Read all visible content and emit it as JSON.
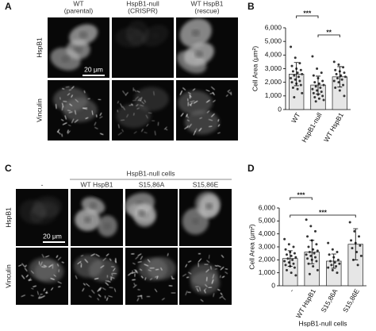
{
  "panels": {
    "A": {
      "label": "A",
      "columns": [
        [
          "WT",
          "(parental)"
        ],
        [
          "HspB1-null",
          "(CRISPR)"
        ],
        [
          "WT HspB1",
          "(rescue)"
        ]
      ],
      "rows": [
        "HspB1",
        "Vinculin"
      ],
      "scale_bar": "20 μm"
    },
    "B": {
      "label": "B"
    },
    "C": {
      "label": "C",
      "group": "HspB1-null cells",
      "columns": [
        "-",
        "WT HspB1",
        "S15,86A",
        "S15,86E"
      ],
      "rows": [
        "HspB1",
        "Vinculin"
      ],
      "scale_bar": "20 μm"
    },
    "D": {
      "label": "D"
    }
  },
  "chart_data": [
    {
      "type": "bar",
      "ylabel": "Cell Area (μm²)",
      "categories": [
        "WT",
        "HspB1-null",
        "WT HspB1"
      ],
      "values": [
        2600,
        1800,
        2400
      ],
      "errors": [
        850,
        650,
        750
      ],
      "color": "#e6e6e6",
      "points": [
        [
          4600,
          3800,
          3400,
          3200,
          3000,
          2900,
          2800,
          2700,
          2600,
          2500,
          2400,
          2300,
          2200,
          2100,
          2000,
          1900,
          1800,
          1600,
          1500,
          1200,
          900
        ],
        [
          3900,
          3000,
          2700,
          2500,
          2300,
          2100,
          2000,
          1900,
          1800,
          1700,
          1600,
          1500,
          1400,
          1300,
          1200,
          1100,
          1000,
          900,
          800,
          700,
          600
        ],
        [
          3500,
          3300,
          3100,
          2900,
          2800,
          2700,
          2600,
          2500,
          2400,
          2300,
          2200,
          2100,
          2000,
          1800,
          1600,
          1400,
          1000
        ]
      ],
      "significance": [
        "***",
        "**"
      ],
      "ylim": [
        0,
        6000
      ],
      "yticks": [
        0,
        {
          "value": 1000,
          "label": "1,000"
        },
        {
          "value": 2000,
          "label": "2,000"
        },
        {
          "value": 3000,
          "label": "3,000"
        },
        {
          "value": 4000,
          "label": "4,000"
        },
        {
          "value": 5000,
          "label": "5,000"
        },
        {
          "value": 6000,
          "label": "6,000"
        }
      ]
    },
    {
      "type": "bar",
      "ylabel": "Cell Area (μm²)",
      "xlabel": "HspB1-null cells",
      "categories": [
        "-",
        "WT HspB1",
        "S15,86A",
        "S15,86E"
      ],
      "values": [
        2100,
        2600,
        1900,
        3200
      ],
      "errors": [
        600,
        900,
        550,
        1200
      ],
      "color": "#e6e6e6",
      "points": [
        [
          3600,
          3200,
          3000,
          2800,
          2600,
          2500,
          2400,
          2300,
          2200,
          2100,
          2000,
          1900,
          1800,
          1700,
          1600,
          1500,
          1400,
          1200,
          1000,
          800
        ],
        [
          5100,
          4600,
          4200,
          3800,
          3500,
          3200,
          3000,
          2800,
          2700,
          2600,
          2500,
          2400,
          2300,
          2200,
          2100,
          2000,
          1900,
          1700,
          1500,
          1200,
          900
        ],
        [
          3300,
          2800,
          2600,
          2400,
          2200,
          2000,
          1900,
          1800,
          1700,
          1600,
          1500,
          1400,
          1200,
          1000
        ],
        [
          4900,
          4200,
          3800,
          3500,
          3300,
          3100,
          2900,
          2600,
          2300,
          2000,
          1600
        ]
      ],
      "significance": [
        "***",
        "***"
      ],
      "ylim": [
        0,
        6000
      ],
      "yticks": [
        0,
        {
          "value": 1000,
          "label": "1,000"
        },
        {
          "value": 2000,
          "label": "2,000"
        },
        {
          "value": 3000,
          "label": "3,000"
        },
        {
          "value": 4000,
          "label": "4,000"
        },
        {
          "value": 5000,
          "label": "5,000"
        },
        {
          "value": 6000,
          "label": "6,000"
        }
      ]
    }
  ]
}
